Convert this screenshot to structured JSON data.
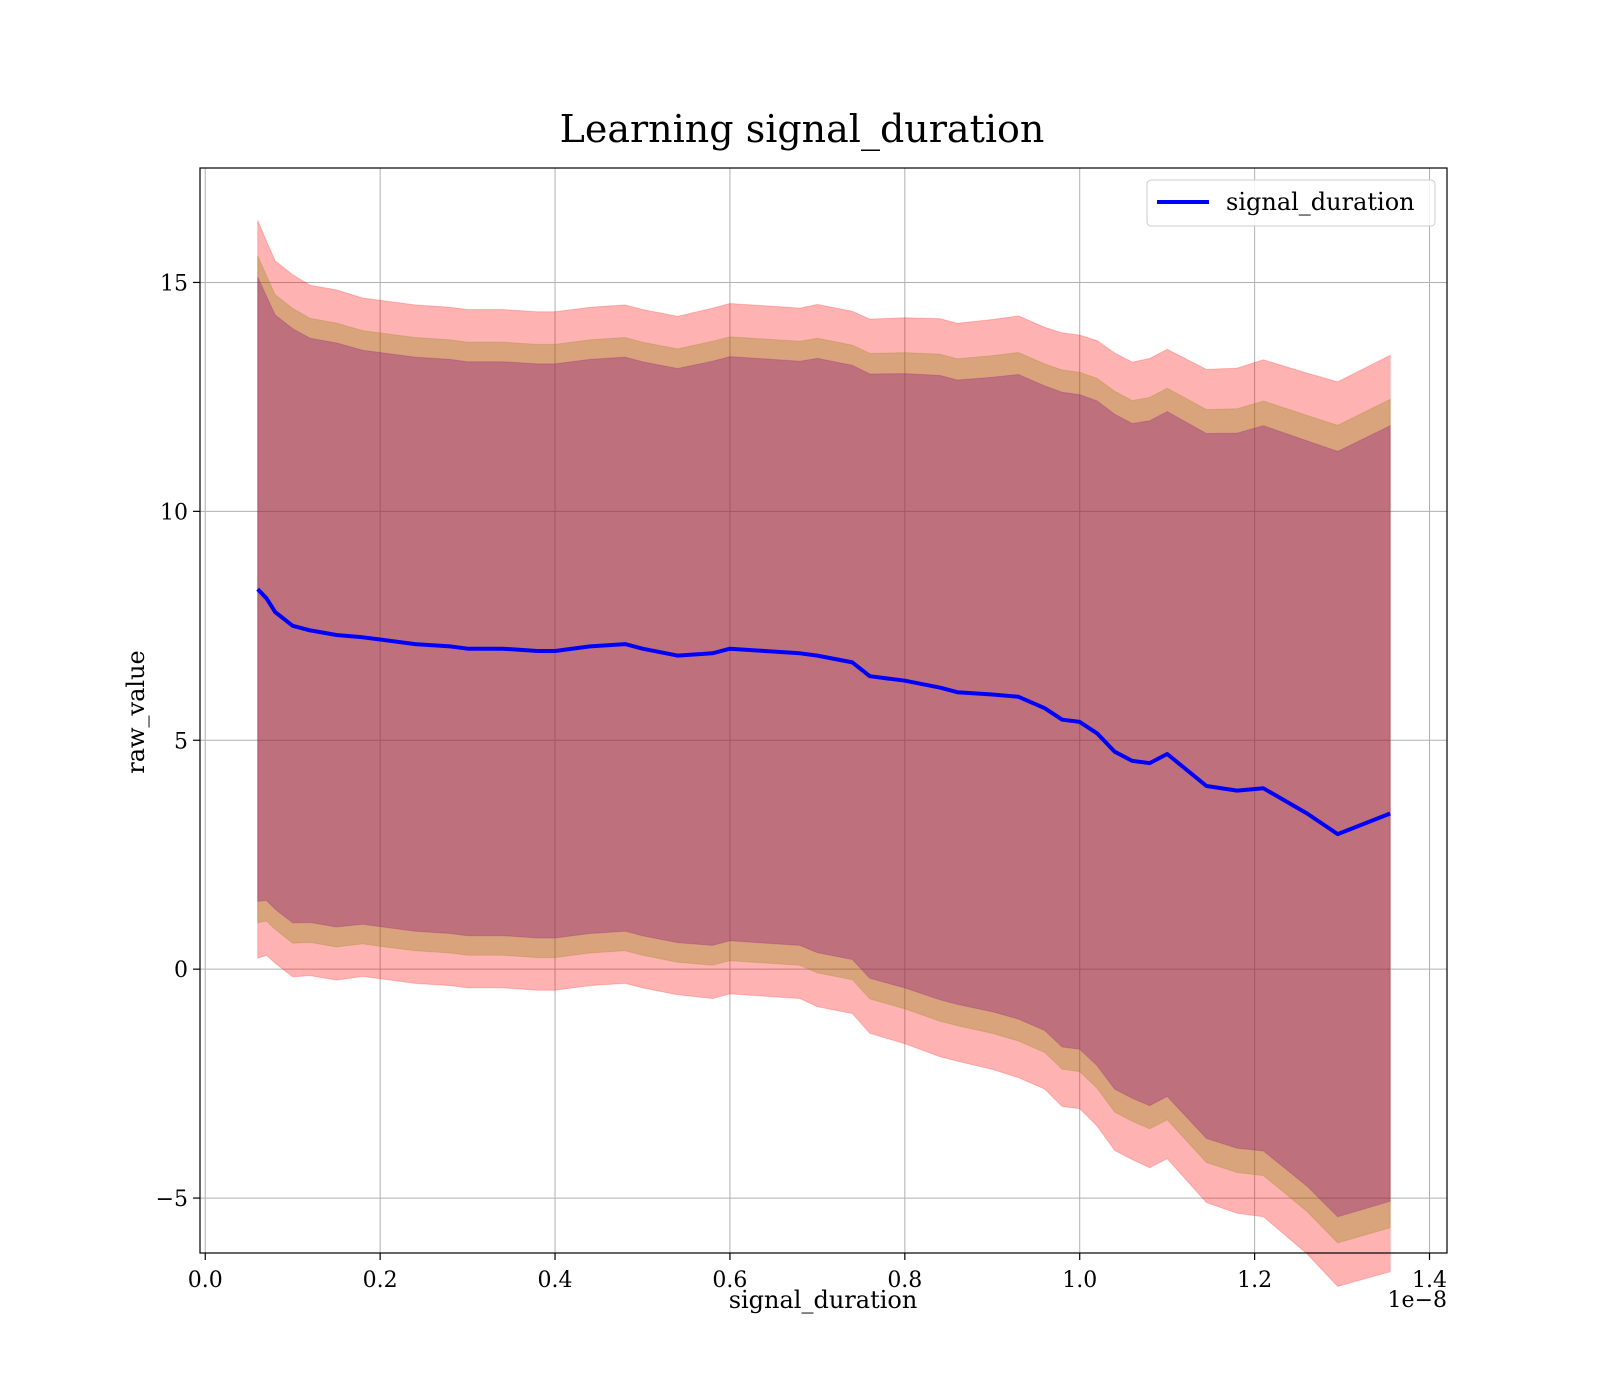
{
  "chart_data": {
    "type": "line",
    "title": "Learning signal_duration",
    "xlabel": "signal_duration",
    "ylabel": "raw_value",
    "x_offset_label": "1e−8",
    "xlim": [
      -0.006,
      1.42
    ],
    "ylim": [
      -6.2,
      17.5
    ],
    "x_unit_scale": 1e-08,
    "xticks": [
      0.0,
      0.2,
      0.4,
      0.6,
      0.8,
      1.0,
      1.2,
      1.4
    ],
    "xtick_labels": [
      "0.0",
      "0.2",
      "0.4",
      "0.6",
      "0.8",
      "1.0",
      "1.2",
      "1.4"
    ],
    "yticks": [
      -5,
      0,
      5,
      10,
      15
    ],
    "ytick_labels": [
      "−5",
      "0",
      "5",
      "10",
      "15"
    ],
    "grid": true,
    "legend": {
      "position": "top-right",
      "entries": [
        "signal_duration"
      ]
    },
    "series": [
      {
        "name": "signal_duration",
        "color": "#0000ff",
        "x": [
          0.06,
          0.07,
          0.08,
          0.1,
          0.12,
          0.15,
          0.18,
          0.2,
          0.24,
          0.28,
          0.3,
          0.34,
          0.38,
          0.4,
          0.44,
          0.48,
          0.5,
          0.54,
          0.58,
          0.6,
          0.64,
          0.68,
          0.7,
          0.74,
          0.76,
          0.8,
          0.84,
          0.86,
          0.9,
          0.93,
          0.96,
          0.98,
          1.0,
          1.02,
          1.04,
          1.06,
          1.08,
          1.1,
          1.145,
          1.18,
          1.21,
          1.26,
          1.295,
          1.355
        ],
        "y": [
          8.3,
          8.1,
          7.8,
          7.5,
          7.4,
          7.3,
          7.25,
          7.2,
          7.1,
          7.05,
          7.0,
          7.0,
          6.95,
          6.95,
          7.05,
          7.1,
          7.0,
          6.85,
          6.9,
          7.0,
          6.95,
          6.9,
          6.85,
          6.7,
          6.4,
          6.3,
          6.15,
          6.05,
          6.0,
          5.95,
          5.7,
          5.45,
          5.4,
          5.15,
          4.75,
          4.55,
          4.5,
          4.7,
          4.0,
          3.9,
          3.95,
          3.4,
          2.95,
          3.4
        ]
      }
    ],
    "bands": [
      {
        "color": "#ff0000",
        "opacity": 0.3,
        "sigma": 2.6
      },
      {
        "color": "#808000",
        "opacity": 0.3,
        "sigma": 2.35
      },
      {
        "color": "#800080",
        "opacity": 0.3,
        "sigma": 2.2
      }
    ],
    "band_std": [
      3.1,
      3.0,
      2.95,
      2.95,
      2.9,
      2.9,
      2.85,
      2.85,
      2.85,
      2.85,
      2.85,
      2.85,
      2.85,
      2.85,
      2.85,
      2.85,
      2.85,
      2.85,
      2.9,
      2.9,
      2.9,
      2.9,
      2.95,
      2.95,
      3.0,
      3.05,
      3.1,
      3.1,
      3.15,
      3.2,
      3.2,
      3.25,
      3.25,
      3.3,
      3.35,
      3.35,
      3.4,
      3.4,
      3.5,
      3.55,
      3.6,
      3.7,
      3.8,
      3.85
    ]
  }
}
